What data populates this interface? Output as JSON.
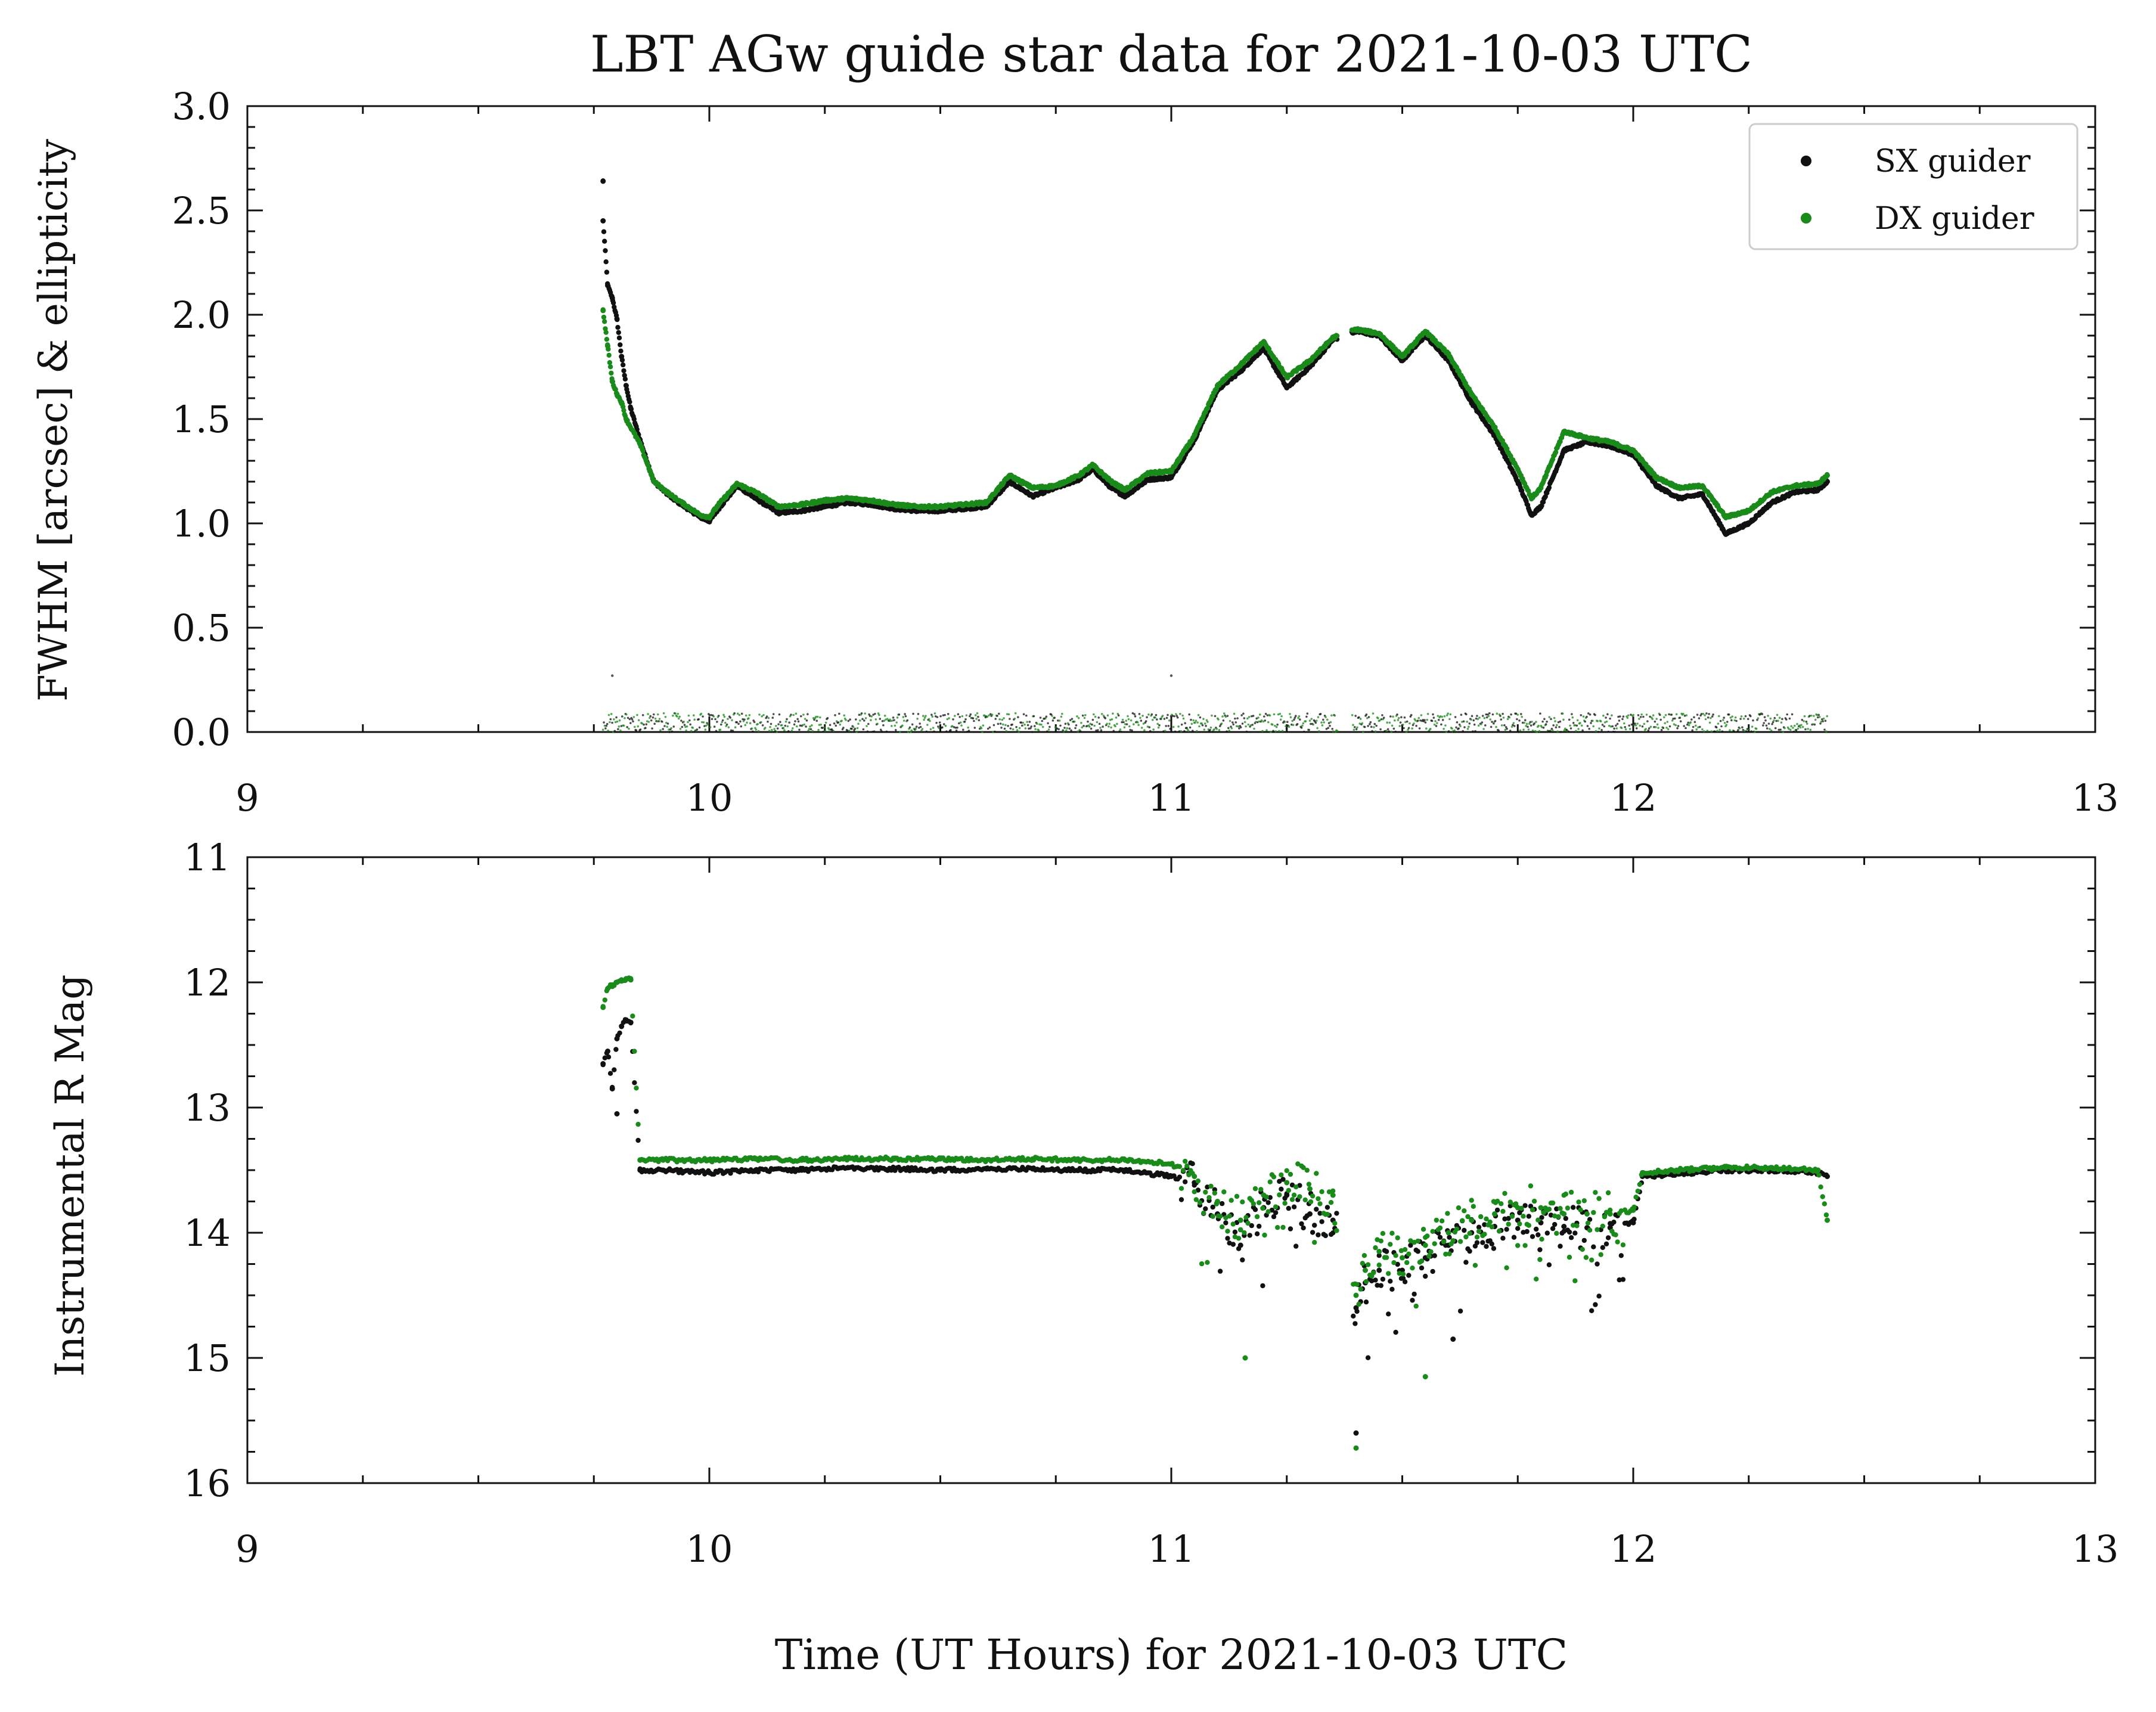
{
  "chart_data": [
    {
      "type": "scatter",
      "title": "LBT AGw guide star data for 2021-10-03 UTC",
      "xlabel": "",
      "ylabel": "FWHM [arcsec] & ellipticity",
      "xlim": [
        9,
        13
      ],
      "ylim": [
        0.0,
        3.0
      ],
      "x_ticks": [
        "9",
        "10",
        "11",
        "12",
        "13"
      ],
      "y_ticks": [
        "0.0",
        "0.5",
        "1.0",
        "1.5",
        "2.0",
        "2.5",
        "3.0"
      ],
      "legend": {
        "placement": "top-right",
        "entries": [
          "SX guider",
          "DX guider"
        ]
      },
      "colors": {
        "SX guider": "#111111",
        "DX guider": "#1a8a1a"
      },
      "series": [
        {
          "name": "SX guider",
          "x": [
            9.77,
            9.77,
            9.78,
            9.79,
            9.8,
            9.81,
            9.82,
            9.83,
            9.85,
            9.88,
            9.92,
            9.96,
            9.98,
            10.0,
            10.02,
            10.06,
            10.1,
            10.15,
            10.2,
            10.25,
            10.3,
            10.35,
            10.4,
            10.45,
            10.5,
            10.55,
            10.6,
            10.65,
            10.7,
            10.75,
            10.8,
            10.83,
            10.87,
            10.9,
            10.95,
            11.0,
            11.05,
            11.1,
            11.15,
            11.2,
            11.25,
            11.3,
            11.35,
            11.4,
            11.45,
            11.5,
            11.55,
            11.6,
            11.65,
            11.7,
            11.75,
            11.78,
            11.8,
            11.85,
            11.9,
            11.95,
            12.0,
            12.05,
            12.1,
            12.15,
            12.2,
            12.25,
            12.3,
            12.35,
            12.4,
            12.42
          ],
          "y": [
            2.64,
            2.45,
            2.14,
            2.08,
            1.98,
            1.8,
            1.66,
            1.55,
            1.4,
            1.2,
            1.12,
            1.06,
            1.03,
            1.01,
            1.07,
            1.18,
            1.12,
            1.05,
            1.06,
            1.08,
            1.1,
            1.09,
            1.07,
            1.06,
            1.06,
            1.07,
            1.08,
            1.2,
            1.13,
            1.17,
            1.21,
            1.26,
            1.17,
            1.13,
            1.21,
            1.22,
            1.4,
            1.64,
            1.73,
            1.84,
            1.65,
            1.75,
            1.88,
            1.92,
            1.9,
            1.78,
            1.9,
            1.78,
            1.58,
            1.42,
            1.2,
            1.04,
            1.08,
            1.35,
            1.39,
            1.37,
            1.33,
            1.18,
            1.12,
            1.14,
            0.95,
            1.0,
            1.1,
            1.15,
            1.16,
            1.2
          ]
        },
        {
          "name": "DX guider",
          "x": [
            9.77,
            9.78,
            9.79,
            9.8,
            9.81,
            9.82,
            9.85,
            9.88,
            9.92,
            9.96,
            9.98,
            10.0,
            10.02,
            10.06,
            10.1,
            10.15,
            10.2,
            10.25,
            10.3,
            10.35,
            10.4,
            10.45,
            10.5,
            10.55,
            10.6,
            10.65,
            10.7,
            10.75,
            10.8,
            10.83,
            10.87,
            10.9,
            10.95,
            11.0,
            11.05,
            11.1,
            11.15,
            11.2,
            11.25,
            11.3,
            11.35,
            11.4,
            11.45,
            11.5,
            11.55,
            11.6,
            11.65,
            11.7,
            11.75,
            11.78,
            11.8,
            11.85,
            11.9,
            11.95,
            12.0,
            12.05,
            12.1,
            12.15,
            12.2,
            12.25,
            12.3,
            12.35,
            12.4,
            12.42
          ],
          "y": [
            2.02,
            1.85,
            1.68,
            1.62,
            1.58,
            1.5,
            1.38,
            1.2,
            1.13,
            1.07,
            1.04,
            1.03,
            1.09,
            1.19,
            1.15,
            1.08,
            1.09,
            1.11,
            1.12,
            1.11,
            1.09,
            1.08,
            1.08,
            1.09,
            1.1,
            1.23,
            1.17,
            1.18,
            1.23,
            1.28,
            1.2,
            1.16,
            1.24,
            1.25,
            1.42,
            1.66,
            1.76,
            1.87,
            1.7,
            1.78,
            1.89,
            1.93,
            1.91,
            1.8,
            1.92,
            1.81,
            1.62,
            1.46,
            1.26,
            1.12,
            1.17,
            1.44,
            1.41,
            1.39,
            1.35,
            1.22,
            1.17,
            1.18,
            1.03,
            1.06,
            1.15,
            1.18,
            1.19,
            1.23
          ]
        }
      ],
      "ellipticity_points": {
        "x_range": [
          9.77,
          12.42
        ],
        "gaps": [
          [
            11.36,
            11.39
          ]
        ],
        "typical_y": [
          0.0,
          0.09
        ],
        "spikes": [
          {
            "x": 9.79,
            "y": 0.27
          },
          {
            "x": 11.0,
            "y": 0.27
          }
        ]
      }
    },
    {
      "type": "scatter",
      "title": "",
      "xlabel": "Time (UT Hours) for 2021-10-03 UTC",
      "ylabel": "Instrumental R Mag",
      "xlim": [
        9,
        13
      ],
      "ylim": [
        16,
        11
      ],
      "inverted_y": true,
      "x_ticks": [
        "9",
        "10",
        "11",
        "12",
        "13"
      ],
      "y_ticks": [
        "11",
        "12",
        "13",
        "14",
        "15",
        "16"
      ],
      "colors": {
        "SX guider": "#111111",
        "DX guider": "#1a8a1a"
      },
      "series": [
        {
          "name": "SX guider",
          "x": [
            9.77,
            9.78,
            9.79,
            9.8,
            9.81,
            9.82,
            9.83,
            9.85,
            9.9,
            10.0,
            10.1,
            10.2,
            10.3,
            10.4,
            10.5,
            10.6,
            10.7,
            10.8,
            10.9,
            11.0,
            11.05,
            11.1,
            11.15,
            11.2,
            11.25,
            11.3,
            11.35,
            11.4,
            11.42,
            11.45,
            11.5,
            11.55,
            11.6,
            11.65,
            11.7,
            11.75,
            11.8,
            11.85,
            11.9,
            11.95,
            12.0,
            12.02,
            12.1,
            12.2,
            12.3,
            12.4,
            12.42
          ],
          "y": [
            12.65,
            12.55,
            12.85,
            12.45,
            12.35,
            12.3,
            12.32,
            13.5,
            13.5,
            13.52,
            13.5,
            13.5,
            13.48,
            13.49,
            13.5,
            13.49,
            13.49,
            13.5,
            13.5,
            13.55,
            13.6,
            13.85,
            14.1,
            13.8,
            13.7,
            13.85,
            13.9,
            14.6,
            14.4,
            14.3,
            14.3,
            14.2,
            14.1,
            14.0,
            13.95,
            13.9,
            13.92,
            13.95,
            13.96,
            13.96,
            13.92,
            13.55,
            13.53,
            13.5,
            13.5,
            13.52,
            13.55
          ]
        },
        {
          "name": "DX guider",
          "x": [
            9.77,
            9.78,
            9.79,
            9.8,
            9.81,
            9.82,
            9.83,
            9.85,
            9.9,
            10.0,
            10.1,
            10.2,
            10.3,
            10.4,
            10.5,
            10.6,
            10.7,
            10.8,
            10.9,
            11.0,
            11.05,
            11.1,
            11.15,
            11.2,
            11.25,
            11.3,
            11.35,
            11.4,
            11.42,
            11.45,
            11.5,
            11.55,
            11.6,
            11.65,
            11.7,
            11.75,
            11.8,
            11.85,
            11.9,
            11.95,
            12.0,
            12.02,
            12.1,
            12.2,
            12.3,
            12.4,
            12.42
          ],
          "y": [
            12.2,
            12.05,
            12.02,
            12.0,
            11.98,
            11.97,
            11.98,
            13.42,
            13.42,
            13.42,
            13.41,
            13.42,
            13.41,
            13.41,
            13.41,
            13.42,
            13.41,
            13.42,
            13.42,
            13.45,
            13.55,
            13.75,
            13.9,
            13.7,
            13.6,
            13.65,
            13.7,
            14.5,
            14.3,
            14.15,
            14.2,
            14.1,
            14.0,
            13.9,
            13.85,
            13.8,
            13.8,
            13.85,
            13.85,
            13.85,
            13.82,
            13.52,
            13.5,
            13.48,
            13.48,
            13.5,
            13.9
          ]
        }
      ],
      "outliers_sx": [
        {
          "x": 9.8,
          "y": 13.05
        },
        {
          "x": 11.4,
          "y": 15.6
        },
        {
          "x": 11.61,
          "y": 14.85
        }
      ],
      "outliers_dx": [
        {
          "x": 11.16,
          "y": 15.0
        },
        {
          "x": 11.4,
          "y": 15.72
        },
        {
          "x": 11.55,
          "y": 15.15
        }
      ]
    }
  ]
}
